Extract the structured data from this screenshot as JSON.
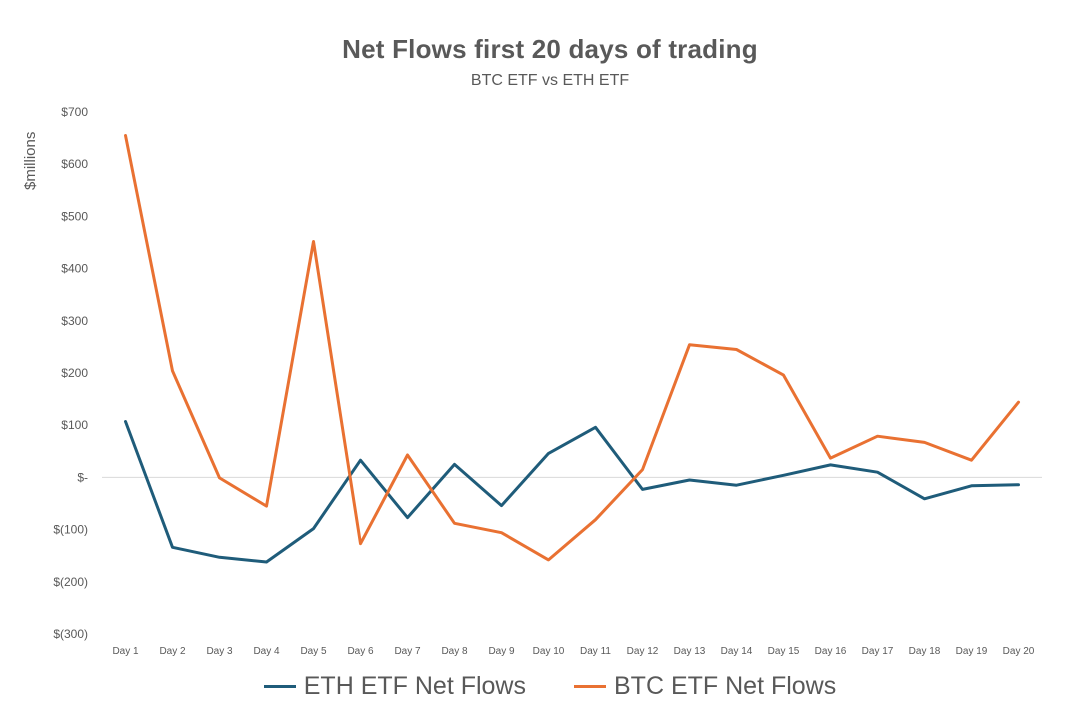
{
  "chart_data": {
    "type": "line",
    "title": "Net Flows first 20 days of trading",
    "subtitle": "BTC ETF vs ETH ETF",
    "xlabel": "",
    "ylabel": "$millions",
    "ylim": [
      -300,
      700
    ],
    "yticks": [
      700,
      600,
      500,
      400,
      300,
      200,
      100,
      0,
      -100,
      -200,
      -300
    ],
    "ytick_labels": [
      "$700",
      "$600",
      "$500",
      "$400",
      "$300",
      "$200",
      "$100",
      "$-",
      "$(100)",
      "$(200)",
      "$(300)"
    ],
    "categories": [
      "Day 1",
      "Day 2",
      "Day 3",
      "Day 4",
      "Day 5",
      "Day 6",
      "Day 7",
      "Day 8",
      "Day 9",
      "Day 10",
      "Day 11",
      "Day 12",
      "Day 13",
      "Day 14",
      "Day 15",
      "Day 16",
      "Day 17",
      "Day 18",
      "Day 19",
      "Day 20"
    ],
    "grid": false,
    "legend_position": "bottom",
    "series": [
      {
        "name": "ETH ETF Net Flows",
        "color": "#1F5C7A",
        "values": [
          107,
          -134,
          -153,
          -162,
          -98,
          33,
          -77,
          25,
          -54,
          46,
          96,
          -23,
          -5,
          -15,
          4,
          24,
          10,
          -41,
          -16,
          -14
        ]
      },
      {
        "name": "BTC ETF Net Flows",
        "color": "#E97132",
        "values": [
          655,
          204,
          -1,
          -55,
          452,
          -127,
          43,
          -88,
          -106,
          -158,
          -81,
          15,
          254,
          245,
          196,
          37,
          79,
          67,
          33,
          144
        ]
      }
    ]
  }
}
